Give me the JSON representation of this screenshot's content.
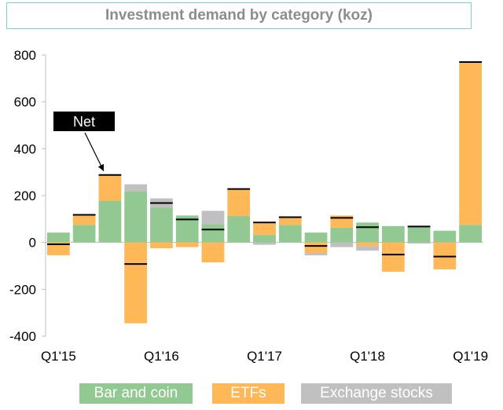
{
  "chart_data": {
    "type": "bar",
    "stacked": true,
    "title": "Investment demand by category (koz)",
    "xlabel": "",
    "ylabel": "",
    "ylim": [
      -400,
      800
    ],
    "yticks": [
      800,
      600,
      400,
      200,
      0,
      -200,
      -400
    ],
    "x_tick_labels": [
      "Q1'15",
      "Q1'16",
      "Q1'17",
      "Q1'18",
      "Q1'19"
    ],
    "x_tick_indices": [
      0,
      4,
      8,
      12,
      16
    ],
    "categories": [
      "Q1'15",
      "Q2'15",
      "Q3'15",
      "Q4'15",
      "Q1'16",
      "Q2'16",
      "Q3'16",
      "Q4'16",
      "Q1'17",
      "Q2'17",
      "Q3'17",
      "Q4'17",
      "Q1'18",
      "Q2'18",
      "Q3'18",
      "Q4'18",
      "Q1'19"
    ],
    "series": [
      {
        "name": "Bar and coin",
        "color": "#92c891",
        "values": [
          42,
          75,
          178,
          218,
          148,
          115,
          78,
          113,
          32,
          75,
          42,
          63,
          85,
          70,
          68,
          50,
          75
        ]
      },
      {
        "name": "ETFs",
        "color": "#ffb857",
        "values": [
          -55,
          42,
          108,
          -345,
          -25,
          -20,
          -85,
          115,
          50,
          33,
          -45,
          52,
          -15,
          -125,
          0,
          -115,
          692
        ]
      },
      {
        "name": "Exchange stocks",
        "color": "#c0c0c0",
        "values": [
          0,
          0,
          0,
          30,
          40,
          0,
          57,
          0,
          -10,
          0,
          -10,
          -20,
          -20,
          0,
          -5,
          0,
          0
        ]
      }
    ],
    "net": [
      -8,
      118,
      288,
      -92,
      168,
      98,
      55,
      228,
      85,
      108,
      -15,
      105,
      65,
      -52,
      68,
      -60,
      770
    ],
    "annotation": {
      "text": "Net",
      "target_index": 2
    },
    "legend_position": "bottom",
    "grid": false
  }
}
